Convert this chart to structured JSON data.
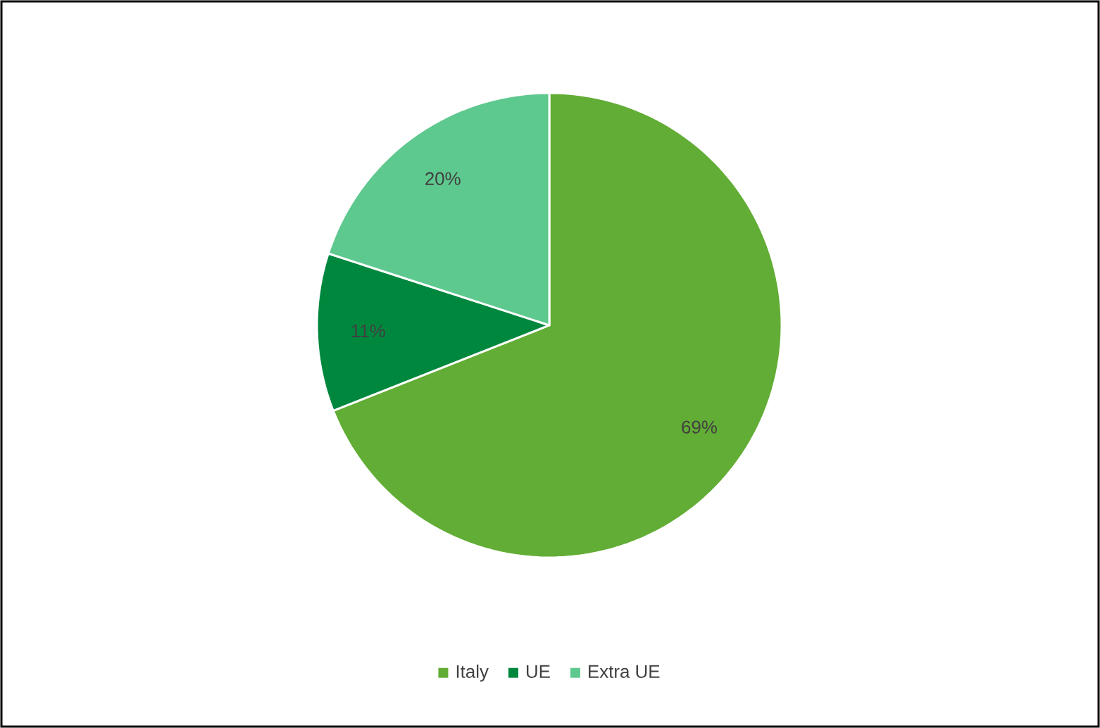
{
  "chart_data": {
    "type": "pie",
    "categories": [
      "Italy",
      "UE",
      "Extra UE"
    ],
    "values": [
      69,
      11,
      20
    ],
    "colors": [
      "#62ad35",
      "#00873e",
      "#5ec98f"
    ],
    "value_labels": [
      "69%",
      "11%",
      "20%"
    ],
    "legend": "bottom"
  }
}
